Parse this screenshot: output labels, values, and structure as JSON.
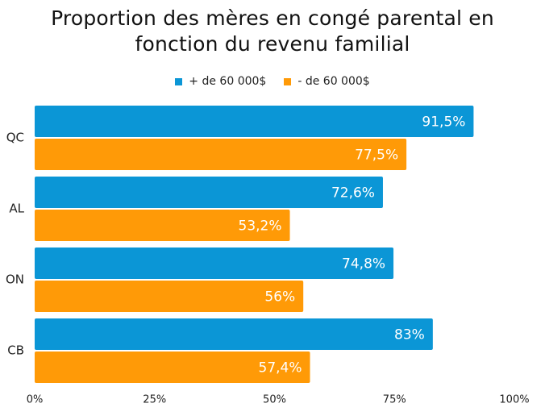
{
  "title_line1": "Proportion des mères en congé parental en",
  "title_line2": "fonction du revenu familial",
  "colors": {
    "high": "#0b96d6",
    "low": "#ff9a07"
  },
  "chart_data": {
    "type": "bar",
    "orientation": "horizontal",
    "title": "Proportion des mères en congé parental en fonction du revenu familial",
    "categories": [
      "QC",
      "AL",
      "ON",
      "CB"
    ],
    "series": [
      {
        "name": "+ de 60 000$",
        "values": [
          91.5,
          72.6,
          74.8,
          83
        ],
        "labels": [
          "91,5%",
          "72,6%",
          "74,8%",
          "83%"
        ]
      },
      {
        "name": "- de 60 000$",
        "values": [
          77.5,
          53.2,
          56,
          57.4
        ],
        "labels": [
          "77,5%",
          "53,2%",
          "56%",
          "57,4%"
        ]
      }
    ],
    "xlim": [
      0,
      100
    ],
    "xticks": [
      "0%",
      "25%",
      "50%",
      "75%",
      "100%"
    ],
    "legend_position": "top",
    "grid": false
  }
}
